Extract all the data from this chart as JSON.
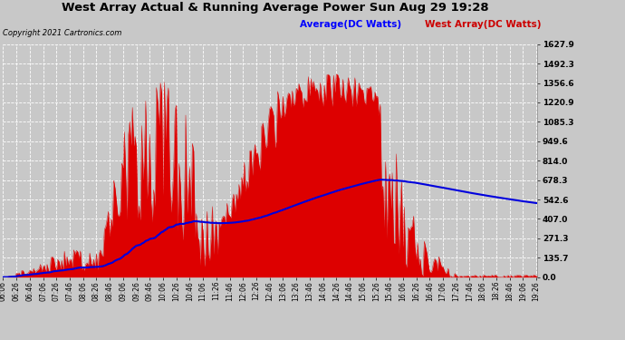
{
  "title": "West Array Actual & Running Average Power Sun Aug 29 19:28",
  "copyright": "Copyright 2021 Cartronics.com",
  "legend_avg": "Average(DC Watts)",
  "legend_west": "West Array(DC Watts)",
  "ymin": 0.0,
  "ymax": 1627.9,
  "yticks": [
    0.0,
    135.7,
    271.3,
    407.0,
    542.6,
    678.3,
    814.0,
    949.6,
    1085.3,
    1220.9,
    1356.6,
    1492.3,
    1627.9
  ],
  "bg_color": "#c8c8c8",
  "plot_bg_color": "#c8c8c8",
  "grid_color": "#ffffff",
  "red_color": "#dd0000",
  "blue_color": "#0000dd",
  "avg_color": "#0000ff",
  "west_color": "#cc0000",
  "title_color": "#000000",
  "x_start_hour": 6,
  "x_start_min": 6,
  "x_end_hour": 19,
  "x_end_min": 28,
  "xtick_step_min": 20
}
